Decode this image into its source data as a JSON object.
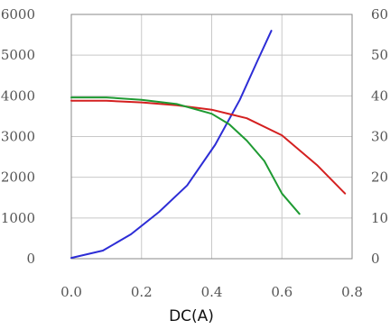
{
  "chart_data": {
    "type": "line",
    "xlabel": "DC(A)",
    "xlim": [
      0,
      0.8
    ],
    "ylim_left": [
      0,
      6000
    ],
    "ylim_right": [
      0,
      60
    ],
    "x_ticks": [
      "0.0",
      "0.2",
      "0.4",
      "0.6",
      "0.8"
    ],
    "y_left_ticks": [
      "0",
      "1000",
      "2000",
      "3000",
      "4000",
      "5000",
      "6000"
    ],
    "y_right_ticks": [
      "0",
      "10",
      "20",
      "30",
      "40",
      "50",
      "60"
    ],
    "grid": true,
    "series": [
      {
        "color": "#2d2dd6",
        "axis": "left",
        "x": [
          0.0,
          0.09,
          0.17,
          0.25,
          0.33,
          0.41,
          0.48,
          0.53,
          0.57
        ],
        "y": [
          20,
          200,
          600,
          1150,
          1800,
          2800,
          3900,
          4850,
          5600
        ]
      },
      {
        "color": "#d42020",
        "axis": "right",
        "x": [
          0.0,
          0.1,
          0.2,
          0.3,
          0.4,
          0.5,
          0.6,
          0.7,
          0.78
        ],
        "y": [
          38.8,
          38.8,
          38.4,
          37.7,
          36.6,
          34.5,
          30.3,
          23,
          16
        ]
      },
      {
        "color": "#1e9a32",
        "axis": "right",
        "x": [
          0.0,
          0.1,
          0.2,
          0.3,
          0.4,
          0.45,
          0.5,
          0.55,
          0.6,
          0.65
        ],
        "y": [
          39.6,
          39.6,
          39,
          38,
          35.6,
          33,
          29,
          24,
          16,
          11
        ]
      }
    ]
  }
}
